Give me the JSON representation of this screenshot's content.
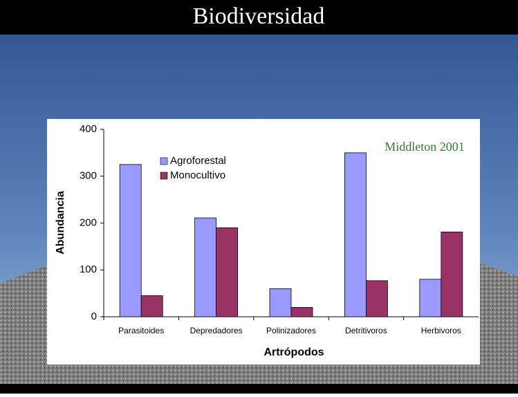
{
  "chart_data": {
    "type": "bar",
    "title": "Biodiversidad",
    "annotation": "Middleton 2001",
    "x_label": "Artrópodos",
    "y_label": "Abundancia",
    "categories": [
      "Parasitoides",
      "Depredadores",
      "Polinizadores",
      "Detritivoros",
      "Herbivoros"
    ],
    "series": [
      {
        "name": "Agroforestal",
        "color": "#9999ff",
        "values": [
          325,
          211,
          60,
          350,
          80
        ]
      },
      {
        "name": "Monocultivo",
        "color": "#993366",
        "values": [
          45,
          190,
          20,
          77,
          181
        ]
      }
    ],
    "ylim": [
      0,
      400
    ],
    "yticks": [
      0,
      100,
      200,
      300,
      400
    ],
    "grid": false,
    "legend": "upper left"
  }
}
